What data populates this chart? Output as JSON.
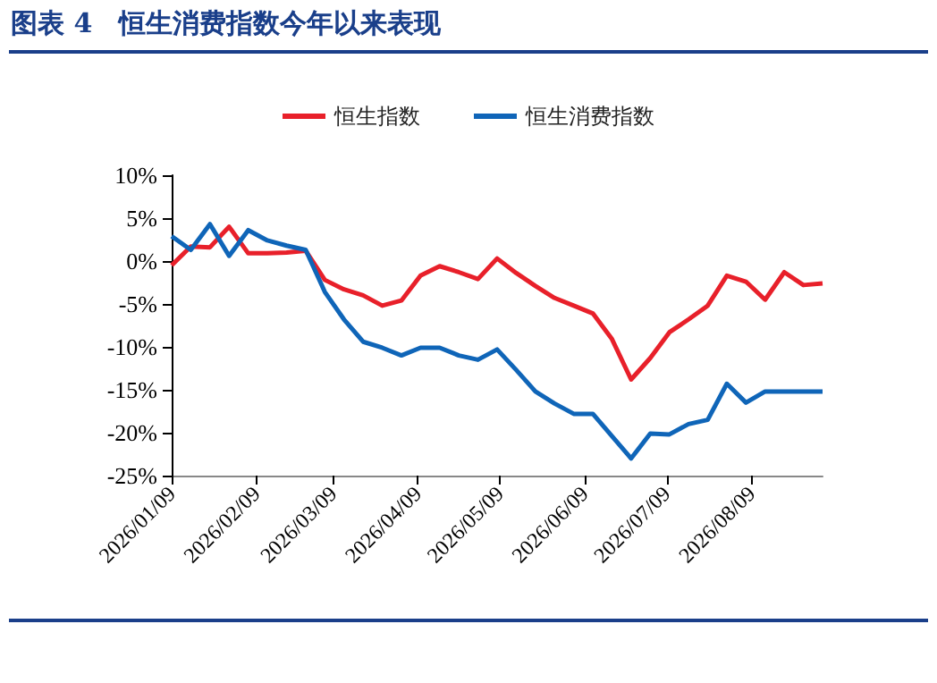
{
  "chart_data": {
    "type": "line",
    "title": "图表 4　恒生消费指数今年以来表现",
    "x": [
      "2026-01-09",
      "2026-01-16",
      "2026-01-23",
      "2026-01-30",
      "2026-02-06",
      "2026-02-13",
      "2026-02-20",
      "2026-02-27",
      "2026-03-06",
      "2026-03-13",
      "2026-03-20",
      "2026-03-27",
      "2026-04-03",
      "2026-04-10",
      "2026-04-17",
      "2026-04-24",
      "2026-05-01",
      "2026-05-08",
      "2026-05-15",
      "2026-05-22",
      "2026-05-29",
      "2026-06-05",
      "2026-06-12",
      "2026-06-19",
      "2026-06-26",
      "2026-07-03",
      "2026-07-10",
      "2026-07-17",
      "2026-07-24",
      "2026-07-31",
      "2026-08-07",
      "2026-08-14",
      "2026-08-21",
      "2026-08-28",
      "2026-09-04"
    ],
    "series": [
      {
        "name": "恒生指数",
        "color": "#e8202a",
        "values": [
          -0.5,
          1.7,
          1.6,
          4.0,
          0.9,
          0.9,
          1.0,
          1.2,
          -2.2,
          -3.3,
          -4.0,
          -5.2,
          -4.6,
          -1.7,
          -0.6,
          -1.3,
          -2.1,
          0.3,
          -1.4,
          -2.9,
          -4.3,
          -5.2,
          -6.1,
          -9.1,
          -13.8,
          -11.3,
          -8.3,
          -6.8,
          -5.2,
          -1.7,
          -2.4,
          -4.5,
          -1.3,
          -2.8,
          -2.6
        ]
      },
      {
        "name": "恒生消费指数",
        "color": "#0f65b8",
        "values": [
          2.9,
          1.3,
          4.3,
          0.6,
          3.6,
          2.4,
          1.8,
          1.3,
          -3.6,
          -6.8,
          -9.4,
          -10.1,
          -11.0,
          -10.1,
          -10.1,
          -11.0,
          -11.5,
          -10.3,
          -12.7,
          -15.2,
          -16.6,
          -17.8,
          -17.8,
          -20.4,
          -23.0,
          -20.1,
          -20.2,
          -19.0,
          -18.5,
          -14.3,
          -16.5,
          -15.2,
          -15.2,
          -15.2,
          -15.2
        ]
      }
    ],
    "xlim": [
      "2026-01-09",
      "2026-09-04"
    ],
    "xticks": [
      {
        "value": "2026-01-09",
        "label": "2026/01/09"
      },
      {
        "value": "2026-02-09",
        "label": "2026/02/09"
      },
      {
        "value": "2026-03-09",
        "label": "2026/03/09"
      },
      {
        "value": "2026-04-09",
        "label": "2026/04/09"
      },
      {
        "value": "2026-05-09",
        "label": "2026/05/09"
      },
      {
        "value": "2026-06-09",
        "label": "2026/06/09"
      },
      {
        "value": "2026-07-09",
        "label": "2026/07/09"
      },
      {
        "value": "2026-08-09",
        "label": "2026/08/09"
      }
    ],
    "ylim": [
      -25,
      10
    ],
    "yticks": [
      {
        "value": -25,
        "label": "-25%"
      },
      {
        "value": -20,
        "label": "-20%"
      },
      {
        "value": -15,
        "label": "-15%"
      },
      {
        "value": -10,
        "label": "-10%"
      },
      {
        "value": -5,
        "label": "-5%"
      },
      {
        "value": 0,
        "label": "0%"
      },
      {
        "value": 5,
        "label": "5%"
      },
      {
        "value": 10,
        "label": "10%"
      }
    ],
    "grid": false,
    "legend": "top",
    "marker": "none",
    "line_style": "solid"
  }
}
